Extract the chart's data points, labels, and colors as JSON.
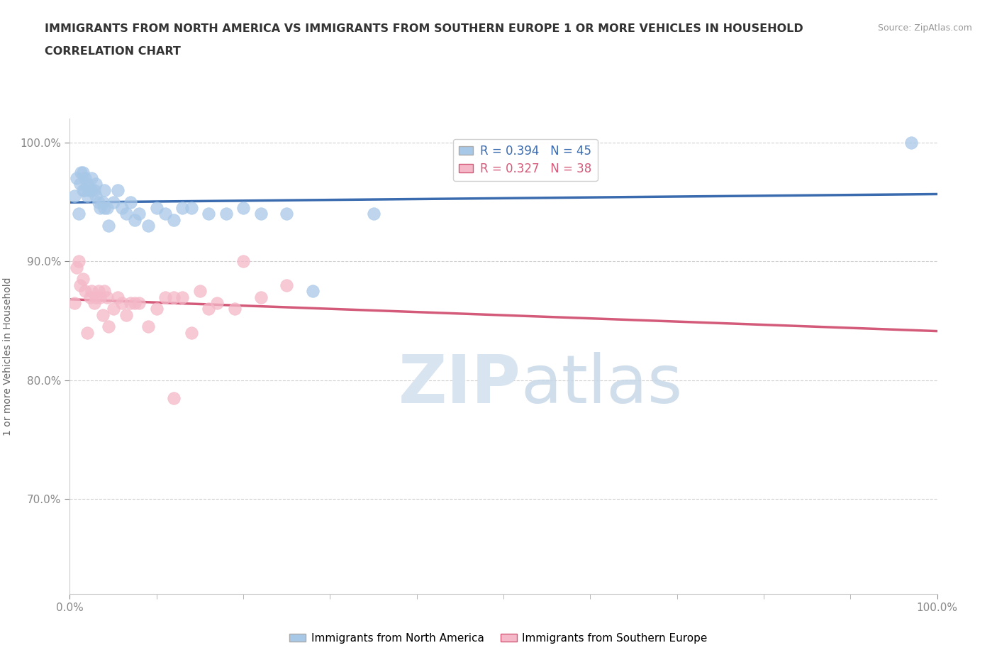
{
  "title_line1": "IMMIGRANTS FROM NORTH AMERICA VS IMMIGRANTS FROM SOUTHERN EUROPE 1 OR MORE VEHICLES IN HOUSEHOLD",
  "title_line2": "CORRELATION CHART",
  "source_text": "Source: ZipAtlas.com",
  "ylabel": "1 or more Vehicles in Household",
  "xlim": [
    0.0,
    1.0
  ],
  "ylim": [
    0.62,
    1.02
  ],
  "ytick_values": [
    0.7,
    0.8,
    0.9,
    1.0
  ],
  "ytick_labels": [
    "70.0%",
    "80.0%",
    "90.0%",
    "100.0%"
  ],
  "legend_label1": "Immigrants from North America",
  "legend_label2": "Immigrants from Southern Europe",
  "R1": 0.394,
  "N1": 45,
  "R2": 0.327,
  "N2": 38,
  "color_blue": "#a8c8e8",
  "color_pink": "#f4b8c8",
  "line_color_blue": "#3a6baf",
  "line_color_pink": "#d45a7a",
  "north_america_x": [
    0.005,
    0.008,
    0.01,
    0.012,
    0.013,
    0.015,
    0.015,
    0.017,
    0.018,
    0.02,
    0.02,
    0.022,
    0.025,
    0.025,
    0.028,
    0.03,
    0.03,
    0.033,
    0.035,
    0.038,
    0.04,
    0.04,
    0.043,
    0.045,
    0.05,
    0.055,
    0.06,
    0.065,
    0.07,
    0.075,
    0.08,
    0.09,
    0.1,
    0.11,
    0.12,
    0.13,
    0.14,
    0.16,
    0.18,
    0.2,
    0.22,
    0.25,
    0.28,
    0.35,
    0.97
  ],
  "north_america_y": [
    0.955,
    0.97,
    0.94,
    0.965,
    0.975,
    0.96,
    0.975,
    0.96,
    0.97,
    0.965,
    0.955,
    0.96,
    0.97,
    0.96,
    0.96,
    0.955,
    0.965,
    0.95,
    0.945,
    0.95,
    0.96,
    0.945,
    0.945,
    0.93,
    0.95,
    0.96,
    0.945,
    0.94,
    0.95,
    0.935,
    0.94,
    0.93,
    0.945,
    0.94,
    0.935,
    0.945,
    0.945,
    0.94,
    0.94,
    0.945,
    0.94,
    0.94,
    0.875,
    0.94,
    1.0
  ],
  "southern_europe_x": [
    0.005,
    0.008,
    0.01,
    0.012,
    0.015,
    0.018,
    0.02,
    0.023,
    0.025,
    0.028,
    0.03,
    0.033,
    0.035,
    0.038,
    0.04,
    0.043,
    0.045,
    0.05,
    0.055,
    0.06,
    0.065,
    0.07,
    0.075,
    0.08,
    0.09,
    0.1,
    0.11,
    0.12,
    0.13,
    0.15,
    0.17,
    0.19,
    0.22,
    0.25,
    0.2,
    0.16,
    0.14,
    0.12
  ],
  "southern_europe_y": [
    0.865,
    0.895,
    0.9,
    0.88,
    0.885,
    0.875,
    0.84,
    0.87,
    0.875,
    0.865,
    0.87,
    0.875,
    0.87,
    0.855,
    0.875,
    0.87,
    0.845,
    0.86,
    0.87,
    0.865,
    0.855,
    0.865,
    0.865,
    0.865,
    0.845,
    0.86,
    0.87,
    0.87,
    0.87,
    0.875,
    0.865,
    0.86,
    0.87,
    0.88,
    0.9,
    0.86,
    0.84,
    0.785
  ],
  "watermark_zip": "ZIP",
  "watermark_atlas": "atlas",
  "background_color": "#ffffff"
}
